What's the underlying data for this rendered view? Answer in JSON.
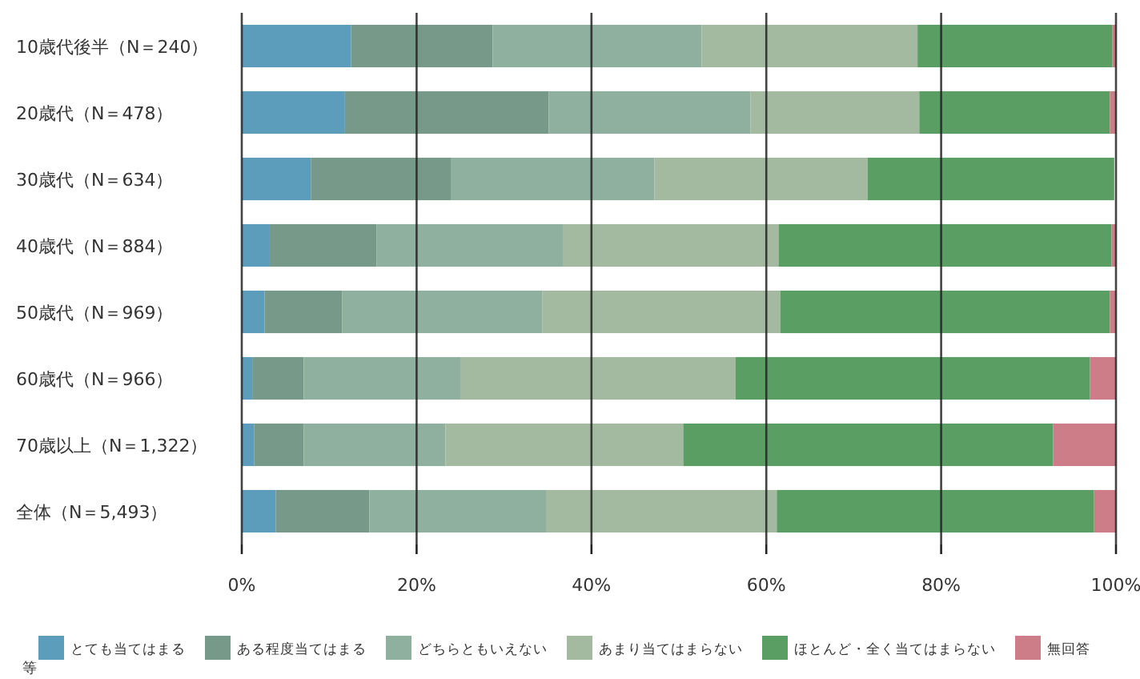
{
  "chart_data": {
    "type": "bar",
    "orientation": "horizontal",
    "stacked": true,
    "grid": "x",
    "legend": "bottom",
    "categories": [
      "10歳代後半（N＝240）",
      "20歳代（N＝478）",
      "30歳代（N＝634）",
      "40歳代（N＝884）",
      "50歳代（N＝969）",
      "60歳代（N＝966）",
      "70歳以上（N＝1,322）",
      "全体（N＝5,493）"
    ],
    "series": [
      {
        "name": "とても当てはまる",
        "color": "#5b9dbb",
        "values": [
          12.5,
          11.8,
          7.9,
          3.2,
          2.6,
          1.2,
          1.4,
          3.9
        ]
      },
      {
        "name": "ある程度当てはまる",
        "color": "#76998a",
        "values": [
          16.2,
          23.3,
          16.0,
          12.2,
          8.9,
          5.9,
          5.7,
          10.7
        ]
      },
      {
        "name": "どちらともいえない",
        "color": "#8fb09f",
        "values": [
          23.9,
          23.1,
          23.3,
          21.4,
          22.9,
          17.9,
          16.2,
          20.2
        ]
      },
      {
        "name": "あまり当てはまらない",
        "color": "#a3b9a0",
        "values": [
          24.7,
          19.3,
          24.4,
          24.6,
          27.2,
          31.5,
          27.2,
          26.4
        ]
      },
      {
        "name": "ほとんど・全く当てはまらない",
        "color": "#5a9e64",
        "values": [
          22.3,
          21.8,
          28.2,
          38.1,
          37.7,
          40.5,
          42.3,
          36.3
        ]
      },
      {
        "name": "無回答",
        "color": "#cc7d87",
        "values": [
          0.4,
          0.7,
          null,
          0.5,
          0.7,
          3.0,
          7.2,
          2.5
        ]
      }
    ],
    "xlim": [
      0,
      100
    ],
    "xticks": [
      {
        "value": 0,
        "label": "0%"
      },
      {
        "value": 20,
        "label": "20%"
      },
      {
        "value": 40,
        "label": "40%"
      },
      {
        "value": 60,
        "label": "60%"
      },
      {
        "value": 80,
        "label": "80%"
      },
      {
        "value": 100,
        "label": "100%"
      }
    ],
    "annotations": [
      "等"
    ]
  }
}
